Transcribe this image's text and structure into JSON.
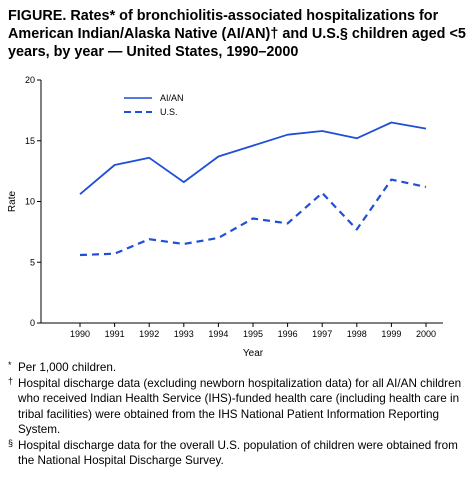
{
  "title_parts": {
    "a": "FIGURE. Rates",
    "b": "* of bronchiolitis-associated hospitalizations for American Indian/Alaska Native (AI/AN)",
    "c": "† and U.S.",
    "d": "§ children aged <5 years, by year — United States, 1990–2000"
  },
  "chart_data": {
    "type": "line",
    "x": [
      "1990",
      "1991",
      "1992",
      "1993",
      "1994",
      "1995",
      "1996",
      "1997",
      "1998",
      "1999",
      "2000"
    ],
    "series": [
      {
        "name": "AI/AN",
        "style": "solid",
        "color": "#1f4fd6",
        "values": [
          10.6,
          13.0,
          13.6,
          11.6,
          13.7,
          14.6,
          15.5,
          15.8,
          15.2,
          16.5,
          16.0
        ]
      },
      {
        "name": "U.S.",
        "style": "dashed",
        "color": "#1f4fd6",
        "values": [
          5.6,
          5.7,
          6.9,
          6.5,
          7.0,
          8.6,
          8.2,
          10.7,
          7.7,
          11.8,
          11.2
        ]
      }
    ],
    "xlabel": "Year",
    "ylabel": "Rate",
    "ylim": [
      0,
      20
    ],
    "yticks": [
      "0",
      "5",
      "10",
      "15",
      "20"
    ],
    "grid": false,
    "legend_position": "top-left"
  },
  "footnotes": [
    {
      "mark": "*",
      "text": "Per 1,000 children."
    },
    {
      "mark": "†",
      "text": "Hospital discharge data (excluding newborn hospitalization data) for all AI/AN children who received Indian Health Service (IHS)-funded health care (including health care in tribal facilities) were obtained from the IHS National Patient Information Reporting System."
    },
    {
      "mark": "§",
      "text": "Hospital discharge data for the overall U.S. population of children were obtained from the National Hospital Discharge Survey."
    }
  ]
}
